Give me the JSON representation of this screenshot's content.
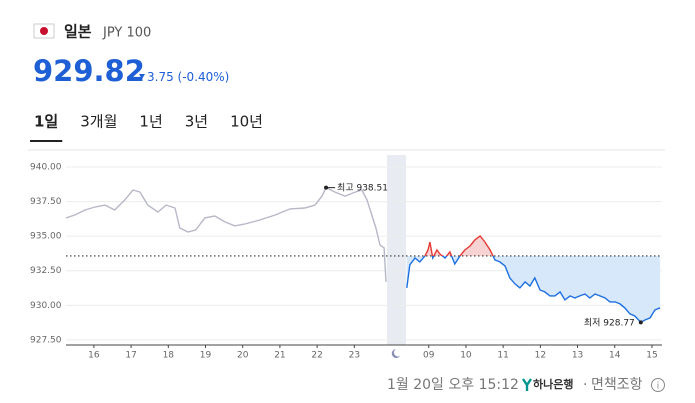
{
  "header": {
    "country": "일본",
    "currency": "JPY 100",
    "price": 929.82,
    "change": 3.75,
    "change_percent": "(-0.40%)"
  },
  "tabs": [
    "1일",
    "3개월",
    "1년",
    "3년",
    "10년"
  ],
  "selected_tab": 0,
  "footer": {
    "timestamp": "1월 20일 오후 15:12",
    "bank": "하나은행",
    "disclaimer": "면책조항"
  },
  "chart_data": {
    "type": "line",
    "grid": true,
    "ylim": [
      927.13,
      940.87
    ],
    "yticks": [
      {
        "value": 927.5,
        "label": "927.50"
      },
      {
        "value": 930,
        "label": "930.00"
      },
      {
        "value": 932.5,
        "label": "932.50"
      },
      {
        "value": 935,
        "label": "935.00"
      },
      {
        "value": 937.5,
        "label": "937.50"
      },
      {
        "value": 940,
        "label": "940.00"
      }
    ],
    "xlim": [
      -0.75,
      15.27
    ],
    "xticks": [
      {
        "value": 0,
        "label": "16"
      },
      {
        "value": 1,
        "label": "17"
      },
      {
        "value": 2,
        "label": "18"
      },
      {
        "value": 3,
        "label": "19"
      },
      {
        "value": 4,
        "label": "20"
      },
      {
        "value": 5,
        "label": "21"
      },
      {
        "value": 6,
        "label": "22"
      },
      {
        "value": 7,
        "label": "23"
      },
      {
        "value": 9,
        "label": "09"
      },
      {
        "value": 10,
        "label": "10"
      },
      {
        "value": 11,
        "label": "11"
      },
      {
        "value": 12,
        "label": "12"
      },
      {
        "value": 13,
        "label": "13"
      },
      {
        "value": 14,
        "label": "14"
      },
      {
        "value": 15,
        "label": "15"
      }
    ],
    "previous_close": 933.57,
    "series": [
      {
        "color": "#b7b8c8",
        "x": [
          -0.75,
          -0.51,
          -0.24,
          0.03,
          0.3,
          0.56,
          0.83,
          1.05,
          1.24,
          1.45,
          1.72,
          1.94,
          2.18,
          2.31,
          2.53,
          2.74,
          2.98,
          3.25,
          3.52,
          3.79,
          4.06,
          4.46,
          4.87,
          5.27,
          5.67,
          5.94,
          6.13,
          6.24,
          6.48,
          6.75,
          7.02,
          7.2,
          7.34,
          7.47,
          7.58,
          7.69,
          7.8,
          7.85
        ],
        "values": [
          936.32,
          936.53,
          936.89,
          937.11,
          937.25,
          936.89,
          937.62,
          938.34,
          938.19,
          937.25,
          936.75,
          937.25,
          937.04,
          935.59,
          935.3,
          935.45,
          936.32,
          936.46,
          936.03,
          935.74,
          935.88,
          936.17,
          936.53,
          936.97,
          937.04,
          937.25,
          937.9,
          938.51,
          938.19,
          937.9,
          938.19,
          938.34,
          937.62,
          936.53,
          935.59,
          934.36,
          934.15,
          931.69
        ]
      },
      {
        "color": "#1b6fe0",
        "up_color": "#e53935",
        "fill_color": "#d7e8fb",
        "up_fill_color": "#f8d3d3",
        "x": [
          8.41,
          8.49,
          8.63,
          8.76,
          8.9,
          8.98,
          9.03,
          9.11,
          9.22,
          9.3,
          9.44,
          9.57,
          9.7,
          9.84,
          9.97,
          10.11,
          10.24,
          10.38,
          10.51,
          10.65,
          10.78,
          10.91,
          11.05,
          11.18,
          11.32,
          11.45,
          11.59,
          11.72,
          11.85,
          11.99,
          12.12,
          12.26,
          12.39,
          12.53,
          12.66,
          12.8,
          12.93,
          13.06,
          13.2,
          13.33,
          13.47,
          13.6,
          13.74,
          13.87,
          14.01,
          14.14,
          14.27,
          14.41,
          14.54,
          14.7,
          14.81,
          14.95,
          15.08,
          15.22
        ],
        "values": [
          931.26,
          932.92,
          933.42,
          933.14,
          933.57,
          934.0,
          934.58,
          933.42,
          934.0,
          933.71,
          933.42,
          933.86,
          932.99,
          933.57,
          934.0,
          934.29,
          934.73,
          935.01,
          934.58,
          934.0,
          933.28,
          933.14,
          932.85,
          931.98,
          931.55,
          931.26,
          931.69,
          931.4,
          931.98,
          931.11,
          930.97,
          930.68,
          930.68,
          930.97,
          930.39,
          930.68,
          930.53,
          930.68,
          930.82,
          930.53,
          930.82,
          930.68,
          930.53,
          930.25,
          930.25,
          930.1,
          929.81,
          929.38,
          929.23,
          928.77,
          928.94,
          929.09,
          929.67,
          929.82
        ]
      }
    ],
    "annotations": [
      {
        "label": "최고",
        "value": 938.51,
        "x": 6.24,
        "side": "right"
      },
      {
        "label": "최저",
        "value": 928.77,
        "x": 14.7,
        "side": "left"
      }
    ]
  }
}
